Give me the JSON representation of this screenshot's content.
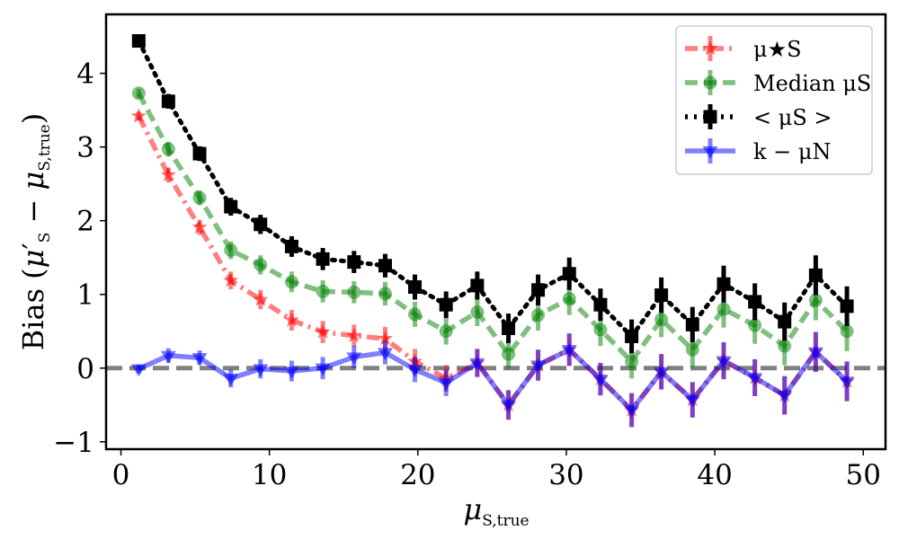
{
  "chart_data": {
    "type": "line",
    "xlabel": "μS,true",
    "ylabel": "Bias (μ′S − μS,true)",
    "xlim": [
      -1,
      51.5
    ],
    "ylim": [
      -1.1,
      4.8
    ],
    "xticks": [
      0,
      10,
      20,
      30,
      40,
      50
    ],
    "yticks": [
      -1,
      0,
      1,
      2,
      3,
      4
    ],
    "xtick_labels": [
      "0",
      "10",
      "20",
      "30",
      "40",
      "50"
    ],
    "ytick_labels": [
      "−1",
      "0",
      "1",
      "2",
      "3",
      "4"
    ],
    "reference_line": {
      "y": 0,
      "style": "dashed",
      "color": "#808080"
    },
    "legend_position": "top-right",
    "x": [
      1.2,
      3.2,
      5.3,
      7.4,
      9.4,
      11.5,
      13.6,
      15.7,
      17.8,
      19.8,
      21.9,
      24.0,
      26.1,
      28.1,
      30.2,
      32.3,
      34.4,
      36.4,
      38.5,
      40.6,
      42.7,
      44.7,
      46.8,
      48.9
    ],
    "series": [
      {
        "name": "μS★",
        "legend_label": "μ★S",
        "color": "#ff0000",
        "linestyle": "dashdot",
        "marker": "star",
        "values": [
          3.42,
          2.62,
          1.91,
          1.19,
          0.93,
          0.65,
          0.49,
          0.44,
          0.4,
          0.09,
          -0.14,
          0.07,
          -0.5,
          0.04,
          0.25,
          -0.15,
          -0.57,
          -0.05,
          -0.43,
          0.1,
          -0.13,
          -0.37,
          0.22,
          -0.18
        ],
        "errors": [
          0.06,
          0.1,
          0.1,
          0.12,
          0.13,
          0.14,
          0.15,
          0.15,
          0.16,
          0.17,
          0.18,
          0.19,
          0.2,
          0.21,
          0.22,
          0.22,
          0.23,
          0.24,
          0.24,
          0.25,
          0.25,
          0.26,
          0.27,
          0.27
        ]
      },
      {
        "name": "Median μS",
        "legend_label": "Median μS",
        "color": "#008000",
        "linestyle": "dashed",
        "marker": "circle",
        "values": [
          3.73,
          2.97,
          2.31,
          1.6,
          1.4,
          1.17,
          1.04,
          1.03,
          1.01,
          0.73,
          0.5,
          0.76,
          0.19,
          0.72,
          0.94,
          0.52,
          0.09,
          0.66,
          0.25,
          0.8,
          0.58,
          0.3,
          0.92,
          0.5
        ],
        "errors": [
          0.06,
          0.1,
          0.1,
          0.12,
          0.13,
          0.14,
          0.15,
          0.15,
          0.16,
          0.17,
          0.18,
          0.19,
          0.2,
          0.21,
          0.22,
          0.22,
          0.23,
          0.24,
          0.24,
          0.25,
          0.25,
          0.26,
          0.27,
          0.27
        ]
      },
      {
        "name": "< μS >",
        "legend_label": "< μS >",
        "color": "#000000",
        "linestyle": "dotted",
        "marker": "square",
        "values": [
          4.44,
          3.62,
          2.91,
          2.19,
          1.95,
          1.65,
          1.48,
          1.44,
          1.39,
          1.1,
          0.86,
          1.12,
          0.54,
          1.06,
          1.28,
          0.86,
          0.43,
          0.99,
          0.59,
          1.14,
          0.9,
          0.63,
          1.26,
          0.84
        ],
        "errors": [
          0.06,
          0.1,
          0.1,
          0.12,
          0.13,
          0.14,
          0.15,
          0.15,
          0.16,
          0.17,
          0.18,
          0.19,
          0.2,
          0.21,
          0.22,
          0.22,
          0.23,
          0.24,
          0.24,
          0.25,
          0.25,
          0.26,
          0.27,
          0.27
        ]
      },
      {
        "name": "k − μN",
        "legend_label": "k − μN",
        "color": "#0000ff",
        "linestyle": "solid",
        "marker": "triangle-down",
        "values": [
          -0.01,
          0.17,
          0.14,
          -0.14,
          -0.01,
          -0.04,
          0.0,
          0.15,
          0.21,
          -0.02,
          -0.2,
          0.07,
          -0.5,
          0.04,
          0.25,
          -0.15,
          -0.57,
          -0.05,
          -0.43,
          0.1,
          -0.13,
          -0.37,
          0.22,
          -0.18
        ],
        "errors": [
          0.06,
          0.1,
          0.1,
          0.12,
          0.13,
          0.14,
          0.15,
          0.15,
          0.16,
          0.17,
          0.18,
          0.19,
          0.2,
          0.21,
          0.22,
          0.22,
          0.23,
          0.24,
          0.24,
          0.25,
          0.25,
          0.26,
          0.27,
          0.27
        ]
      }
    ]
  }
}
